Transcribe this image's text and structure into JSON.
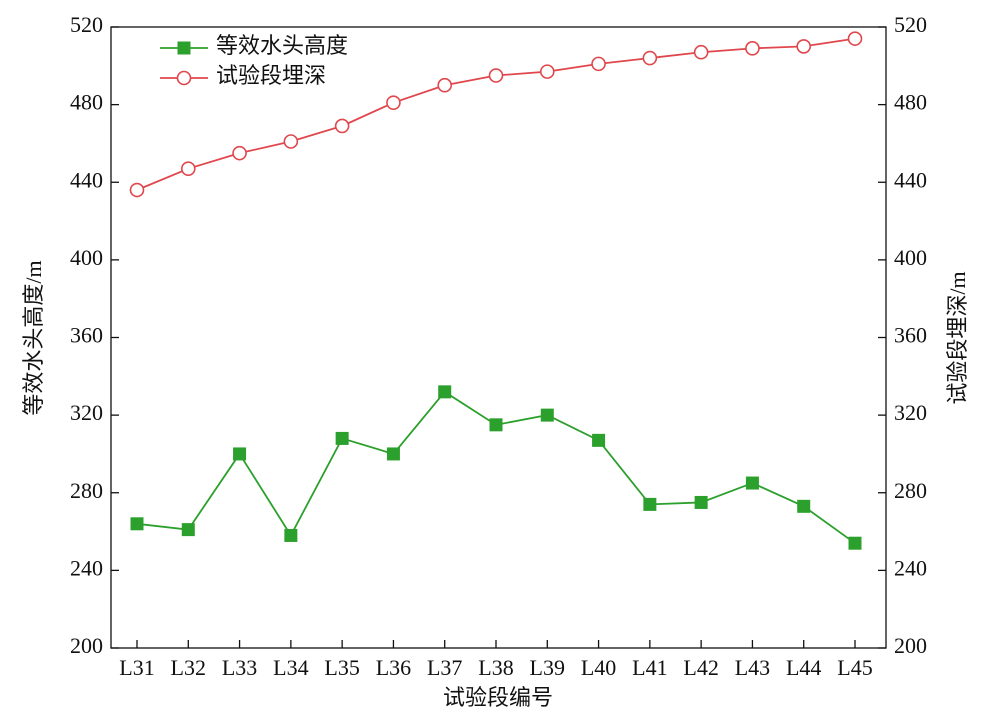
{
  "chart_data": {
    "type": "line",
    "x_label": "试验段编号",
    "y_label": "等效水头高度/m",
    "y2_label": "试验段埋深/m",
    "categories": [
      "L31",
      "L32",
      "L33",
      "L34",
      "L35",
      "L36",
      "L37",
      "L38",
      "L39",
      "L40",
      "L41",
      "L42",
      "L43",
      "L44",
      "L45"
    ],
    "series": [
      {
        "name": "等效水头高度",
        "color": "#2ca02c",
        "marker": "square",
        "values": [
          264,
          261,
          300,
          258,
          308,
          300,
          332,
          315,
          320,
          307,
          274,
          275,
          285,
          273,
          254
        ]
      },
      {
        "name": "试验段埋深",
        "color": "#e0474c",
        "marker": "circle",
        "axis": "y2",
        "values": [
          436,
          447,
          455,
          461,
          469,
          481,
          490,
          495,
          497,
          501,
          504,
          507,
          509,
          510,
          514
        ]
      }
    ],
    "ylim": [
      200,
      520
    ],
    "yticks": [
      200,
      240,
      280,
      320,
      360,
      400,
      440,
      480,
      520
    ],
    "y2lim": [
      200,
      520
    ],
    "y2ticks": [
      200,
      240,
      280,
      320,
      360,
      400,
      440,
      480,
      520
    ],
    "legend": "upper-left",
    "grid": false
  }
}
